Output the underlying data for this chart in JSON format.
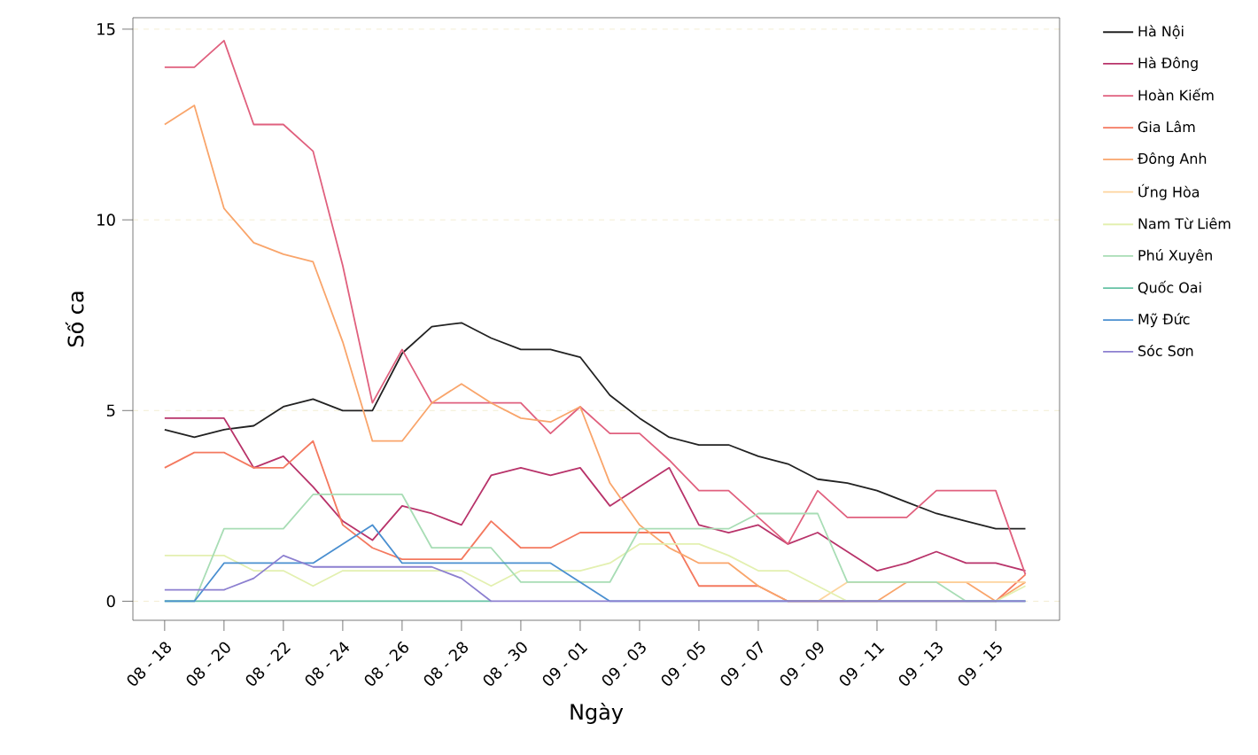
{
  "chart_data": {
    "type": "line",
    "xlabel": "Ngày",
    "ylabel": "Số ca",
    "categories": [
      "08 - 18",
      null,
      "08 - 20",
      null,
      "08 - 22",
      null,
      "08 - 24",
      null,
      "08 - 26",
      null,
      "08 - 28",
      null,
      "08 - 30",
      null,
      "09 - 01",
      null,
      "09 - 03",
      null,
      "09 - 05",
      null,
      "09 - 07",
      null,
      "09 - 09",
      null,
      "09 - 11",
      null,
      "09 - 13",
      null,
      "09 - 15",
      null
    ],
    "series": [
      {
        "name": "Hà Nội",
        "color": "#222222",
        "values": [
          4.5,
          4.3,
          4.5,
          4.6,
          5.1,
          5.3,
          5.0,
          5.0,
          6.5,
          7.2,
          7.3,
          6.9,
          6.6,
          6.6,
          6.4,
          5.4,
          4.8,
          4.3,
          4.1,
          4.1,
          3.8,
          3.6,
          3.2,
          3.1,
          2.9,
          2.6,
          2.3,
          2.1,
          1.9,
          1.9
        ]
      },
      {
        "name": "Hà Đông",
        "color": "#b8336a",
        "values": [
          4.8,
          4.8,
          4.8,
          3.5,
          3.8,
          3.0,
          2.1,
          1.6,
          2.5,
          2.3,
          2.0,
          3.3,
          3.5,
          3.3,
          3.5,
          2.5,
          3.0,
          3.5,
          2.0,
          1.8,
          2.0,
          1.5,
          1.8,
          1.3,
          0.8,
          1.0,
          1.3,
          1.0,
          1.0,
          0.8
        ]
      },
      {
        "name": "Hoàn Kiếm",
        "color": "#e0607e",
        "values": [
          14.0,
          14.0,
          14.7,
          12.5,
          12.5,
          11.8,
          8.8,
          5.2,
          6.6,
          5.2,
          5.2,
          5.2,
          5.2,
          4.4,
          5.1,
          4.4,
          4.4,
          3.7,
          2.9,
          2.9,
          2.2,
          1.5,
          2.9,
          2.2,
          2.2,
          2.2,
          2.9,
          2.9,
          2.9,
          0.7
        ]
      },
      {
        "name": "Gia Lâm",
        "color": "#f4795f",
        "values": [
          3.5,
          3.9,
          3.9,
          3.5,
          3.5,
          4.2,
          2.0,
          1.4,
          1.1,
          1.1,
          1.1,
          2.1,
          1.4,
          1.4,
          1.8,
          1.8,
          1.8,
          1.8,
          0.4,
          0.4,
          0.4,
          0,
          0,
          0,
          0,
          0,
          0,
          0,
          0,
          0.7
        ]
      },
      {
        "name": "Đông Anh",
        "color": "#f9a56b",
        "values": [
          12.5,
          13.0,
          10.3,
          9.4,
          9.1,
          8.9,
          6.8,
          4.2,
          4.2,
          5.2,
          5.7,
          5.2,
          4.8,
          4.7,
          5.1,
          3.1,
          2.0,
          1.4,
          1.0,
          1.0,
          0.4,
          0,
          0,
          0,
          0,
          0.5,
          0.5,
          0.5,
          0,
          0.5
        ]
      },
      {
        "name": "Ứng Hòa",
        "color": "#fdd49e",
        "values": [
          null,
          null,
          null,
          null,
          null,
          null,
          null,
          null,
          null,
          null,
          null,
          null,
          null,
          null,
          null,
          null,
          null,
          null,
          null,
          null,
          null,
          0,
          0,
          0.5,
          null,
          0.5,
          0.5,
          0.5,
          0.5,
          0.5
        ]
      },
      {
        "name": "Nam Từ Liêm",
        "color": "#e3f0b0",
        "values": [
          1.2,
          1.2,
          1.2,
          0.8,
          0.8,
          0.4,
          0.8,
          0.8,
          0.8,
          0.8,
          0.8,
          0.4,
          0.8,
          0.8,
          0.8,
          1.0,
          1.5,
          1.5,
          1.5,
          1.2,
          0.8,
          0.8,
          0.4,
          0,
          0,
          0,
          0,
          0,
          0,
          0.4
        ]
      },
      {
        "name": "Phú Xuyên",
        "color": "#a8ddb5",
        "values": [
          0,
          0,
          1.9,
          1.9,
          1.9,
          2.8,
          2.8,
          2.8,
          2.8,
          1.4,
          1.4,
          1.4,
          0.5,
          0.5,
          0.5,
          0.5,
          1.9,
          1.9,
          1.9,
          1.9,
          2.3,
          2.3,
          2.3,
          0.5,
          0.5,
          0.5,
          0.5,
          0,
          0,
          0
        ]
      },
      {
        "name": "Quốc Oai",
        "color": "#66c2a4",
        "values": [
          0,
          0,
          0,
          0,
          0,
          0,
          0,
          0,
          0,
          0,
          0,
          0,
          null,
          null,
          null,
          null,
          null,
          null,
          null,
          null,
          null,
          null,
          null,
          null,
          null,
          null,
          null,
          null,
          null,
          null
        ]
      },
      {
        "name": "Mỹ Đức",
        "color": "#4a8fd0",
        "values": [
          0,
          0,
          1.0,
          1.0,
          1.0,
          1.0,
          1.5,
          2.0,
          1.0,
          1.0,
          1.0,
          1.0,
          1.0,
          1.0,
          0.5,
          0,
          0,
          0,
          0,
          0,
          0,
          0,
          0,
          0,
          0,
          0,
          0,
          0,
          0,
          0
        ]
      },
      {
        "name": "Sóc Sơn",
        "color": "#8c7fd0",
        "values": [
          0.3,
          0.3,
          0.3,
          0.6,
          1.2,
          0.9,
          0.9,
          0.9,
          0.9,
          0.9,
          0.6,
          0,
          0,
          0,
          0,
          0,
          0,
          0,
          0,
          0,
          0,
          0,
          0,
          0,
          0,
          0,
          0,
          0,
          0,
          0
        ]
      }
    ],
    "ylim": [
      -0.5,
      15.3
    ],
    "yticks": [
      0,
      5,
      10,
      15
    ],
    "grid": "y",
    "legend": "right",
    "marker": "none",
    "line_style": "solid"
  }
}
